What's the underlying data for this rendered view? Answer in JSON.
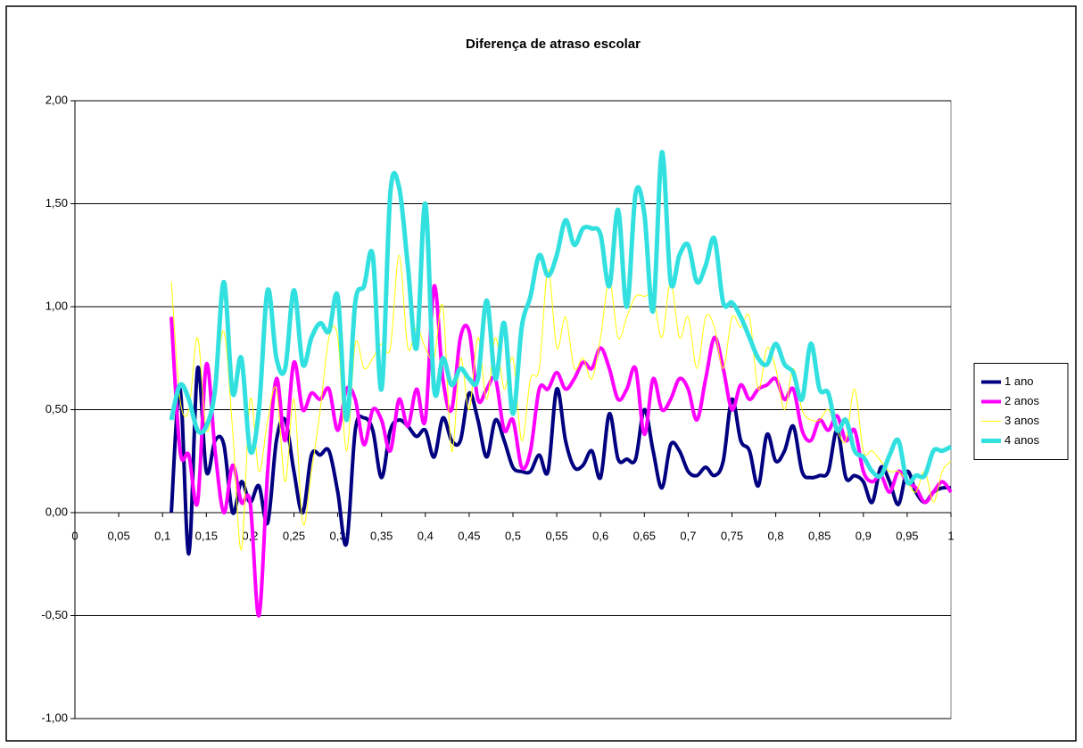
{
  "chart_data": {
    "type": "line",
    "title": "Diferença de atraso escolar",
    "x": [
      0.11,
      0.12,
      0.13,
      0.14,
      0.15,
      0.16,
      0.17,
      0.18,
      0.19,
      0.2,
      0.21,
      0.22,
      0.23,
      0.24,
      0.25,
      0.26,
      0.27,
      0.28,
      0.29,
      0.3,
      0.31,
      0.32,
      0.33,
      0.34,
      0.35,
      0.36,
      0.37,
      0.38,
      0.39,
      0.4,
      0.41,
      0.42,
      0.43,
      0.44,
      0.45,
      0.46,
      0.47,
      0.48,
      0.49,
      0.5,
      0.51,
      0.52,
      0.53,
      0.54,
      0.55,
      0.56,
      0.57,
      0.58,
      0.59,
      0.6,
      0.61,
      0.62,
      0.63,
      0.64,
      0.65,
      0.66,
      0.67,
      0.68,
      0.69,
      0.7,
      0.71,
      0.72,
      0.73,
      0.74,
      0.75,
      0.76,
      0.77,
      0.78,
      0.79,
      0.8,
      0.81,
      0.82,
      0.83,
      0.84,
      0.85,
      0.86,
      0.87,
      0.88,
      0.89,
      0.9,
      0.91,
      0.92,
      0.93,
      0.94,
      0.95,
      0.96,
      0.97,
      0.98,
      0.99,
      1.0
    ],
    "series": [
      {
        "name": "1 ano",
        "color": "#000080",
        "values": [
          0,
          0.6,
          -0.2,
          0.7,
          0.2,
          0.35,
          0.33,
          0,
          0.15,
          0.05,
          0.13,
          -0.05,
          0.35,
          0.45,
          0.2,
          0,
          0.28,
          0.28,
          0.3,
          0.1,
          -0.15,
          0.4,
          0.46,
          0.4,
          0.17,
          0.4,
          0.45,
          0.42,
          0.37,
          0.4,
          0.27,
          0.46,
          0.35,
          0.35,
          0.58,
          0.45,
          0.27,
          0.45,
          0.35,
          0.22,
          0.2,
          0.2,
          0.28,
          0.2,
          0.6,
          0.35,
          0.22,
          0.23,
          0.3,
          0.17,
          0.48,
          0.26,
          0.26,
          0.26,
          0.5,
          0.3,
          0.12,
          0.33,
          0.3,
          0.2,
          0.18,
          0.22,
          0.18,
          0.25,
          0.55,
          0.35,
          0.3,
          0.13,
          0.38,
          0.25,
          0.3,
          0.42,
          0.2,
          0.17,
          0.18,
          0.2,
          0.4,
          0.17,
          0.18,
          0.15,
          0.05,
          0.22,
          0.15,
          0.04,
          0.2,
          0.1,
          0.05,
          0.1,
          0.12,
          0.12
        ]
      },
      {
        "name": "2 anos",
        "color": "#ff00ff",
        "values": [
          0.95,
          0.3,
          0.28,
          0.05,
          0.72,
          0.3,
          0,
          0.23,
          0.05,
          0.05,
          -0.5,
          0.2,
          0.65,
          0.35,
          0.73,
          0.5,
          0.58,
          0.55,
          0.6,
          0.4,
          0.6,
          0.55,
          0.33,
          0.5,
          0.45,
          0.3,
          0.55,
          0.42,
          0.6,
          0.45,
          1.1,
          0.65,
          0.5,
          0.85,
          0.88,
          0.55,
          0.6,
          0.65,
          0.4,
          0.45,
          0.22,
          0.3,
          0.6,
          0.6,
          0.68,
          0.6,
          0.65,
          0.73,
          0.7,
          0.8,
          0.7,
          0.55,
          0.6,
          0.7,
          0.38,
          0.65,
          0.5,
          0.55,
          0.65,
          0.6,
          0.45,
          0.65,
          0.85,
          0.7,
          0.5,
          0.62,
          0.55,
          0.6,
          0.62,
          0.65,
          0.55,
          0.6,
          0.4,
          0.35,
          0.45,
          0.4,
          0.47,
          0.35,
          0.4,
          0.2,
          0.15,
          0.18,
          0.1,
          0.2,
          0.15,
          0.12,
          0.05,
          0.1,
          0.15,
          0.1
        ]
      },
      {
        "name": "3 anos",
        "color": "#ffff00",
        "values": [
          1.12,
          0.55,
          0.5,
          0.85,
          0.4,
          0.6,
          0.88,
          0.4,
          -0.18,
          0.55,
          0.2,
          0.45,
          0.6,
          0.15,
          0.55,
          -0.05,
          0.2,
          0.5,
          0.85,
          0.85,
          0.3,
          0.82,
          0.7,
          0.75,
          0.82,
          0.8,
          1.25,
          0.8,
          0.9,
          0.8,
          0.75,
          1,
          0.3,
          0.75,
          0.5,
          0.85,
          0.55,
          0.85,
          0.6,
          0.75,
          0.35,
          0.65,
          0.7,
          1.18,
          0.8,
          0.95,
          0.7,
          0.75,
          0.65,
          0.85,
          1.13,
          0.85,
          0.95,
          1.05,
          1.05,
          1.05,
          0.85,
          1.12,
          0.85,
          0.95,
          0.7,
          0.95,
          0.9,
          0.7,
          0.95,
          0.9,
          0.95,
          0.6,
          0.8,
          0.7,
          0.5,
          0.7,
          0.5,
          0.45,
          0.45,
          0.5,
          0.4,
          0.35,
          0.6,
          0.3,
          0.3,
          0.25,
          0.2,
          0.2,
          0.15,
          0.1,
          0.2,
          0.05,
          0.2,
          0.25
        ]
      },
      {
        "name": "4 anos",
        "color": "#33e0e0",
        "values": [
          0.45,
          0.62,
          0.55,
          0.4,
          0.42,
          0.6,
          1.12,
          0.58,
          0.75,
          0.3,
          0.5,
          1.08,
          0.75,
          0.7,
          1.08,
          0.72,
          0.85,
          0.92,
          0.88,
          1.05,
          0.45,
          1.02,
          1.1,
          1.25,
          0.6,
          1.55,
          1.58,
          1.2,
          0.8,
          1.5,
          0.6,
          0.75,
          0.62,
          0.7,
          0.65,
          0.65,
          1.03,
          0.65,
          0.92,
          0.48,
          0.9,
          1.05,
          1.25,
          1.15,
          1.25,
          1.42,
          1.3,
          1.38,
          1.38,
          1.35,
          1.1,
          1.47,
          1,
          1.55,
          1.45,
          0.98,
          1.75,
          1.12,
          1.25,
          1.3,
          1.12,
          1.2,
          1.33,
          1.02,
          1.02,
          0.95,
          0.85,
          0.75,
          0.72,
          0.82,
          0.72,
          0.68,
          0.55,
          0.82,
          0.6,
          0.58,
          0.4,
          0.45,
          0.3,
          0.27,
          0.2,
          0.18,
          0.28,
          0.35,
          0.15,
          0.18,
          0.18,
          0.3,
          0.3,
          0.32
        ]
      }
    ],
    "xlim": [
      0,
      1
    ],
    "xticks": [
      0,
      {
        "value": 0.05,
        "label": "0,05"
      },
      {
        "value": 0.1,
        "label": "0,1"
      },
      {
        "value": 0.15,
        "label": "0,15"
      },
      {
        "value": 0.2,
        "label": "0,2"
      },
      {
        "value": 0.25,
        "label": "0,25"
      },
      {
        "value": 0.3,
        "label": "0,3"
      },
      {
        "value": 0.35,
        "label": "0,35"
      },
      {
        "value": 0.4,
        "label": "0,4"
      },
      {
        "value": 0.45,
        "label": "0,45"
      },
      {
        "value": 0.5,
        "label": "0,5"
      },
      {
        "value": 0.55,
        "label": "0,55"
      },
      {
        "value": 0.6,
        "label": "0,6"
      },
      {
        "value": 0.65,
        "label": "0,65"
      },
      {
        "value": 0.7,
        "label": "0,7"
      },
      {
        "value": 0.75,
        "label": "0,75"
      },
      {
        "value": 0.8,
        "label": "0,8"
      },
      {
        "value": 0.85,
        "label": "0,85"
      },
      {
        "value": 0.9,
        "label": "0,9"
      },
      {
        "value": 0.95,
        "label": "0,95"
      },
      1
    ],
    "ylim": [
      -1,
      2
    ],
    "yticks": [
      {
        "value": -1,
        "label": "-1,00"
      },
      {
        "value": -0.5,
        "label": "-0,50"
      },
      {
        "value": 0,
        "label": "0,00"
      },
      {
        "value": 0.5,
        "label": "0,50"
      },
      {
        "value": 1,
        "label": "1,00"
      },
      {
        "value": 1.5,
        "label": "1,50"
      },
      {
        "value": 2,
        "label": "2,00"
      }
    ],
    "grid": true,
    "legend": "right"
  }
}
